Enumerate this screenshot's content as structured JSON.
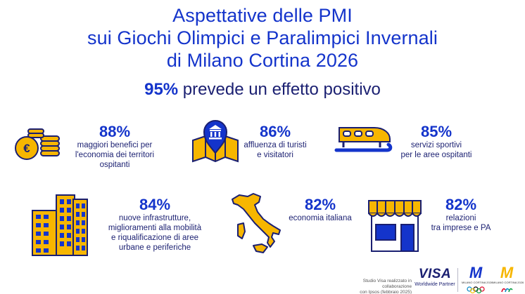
{
  "title": {
    "line1": "Aspettative delle PMI",
    "line2": "sui Giochi Olimpici e Paralimpici Invernali",
    "line3": "di Milano Cortina 2026"
  },
  "headline": {
    "percent": "95%",
    "text": " prevede un effetto positivo"
  },
  "stats": [
    {
      "percent": "88%",
      "description": "maggiori benefici per\nl'economia dei territori\nospitanti",
      "icon": "coins-icon"
    },
    {
      "percent": "86%",
      "description": "affluenza di turisti\ne visitatori",
      "icon": "map-pin-landmark-icon"
    },
    {
      "percent": "85%",
      "description": "servizi sportivi\nper le aree ospitanti",
      "icon": "bobsled-icon"
    },
    {
      "percent": "84%",
      "description": "nuove infrastrutture,\nmiglioramenti alla mobilità\ne riqualificazione di aree\nurbane e periferiche",
      "icon": "buildings-icon"
    },
    {
      "percent": "82%",
      "description": "economia italiana",
      "icon": "italy-map-icon"
    },
    {
      "percent": "82%",
      "description": "relazioni\ntra imprese e PA",
      "icon": "storefront-icon"
    }
  ],
  "footer": {
    "note": "Studio Visa realizzato in collaborazione\ncon Ipsos (febbraio 2025)",
    "visa_logo": "VISA",
    "visa_sub": "Worldwide Partner",
    "olympic_mark": "M",
    "olympic_text": "MILANO CORTINA 2026",
    "paralympic_mark": "M",
    "paralympic_text": "MILANO CORTINA 2026"
  },
  "colors": {
    "blue": "#1434cb",
    "navy": "#1a1f71",
    "gold": "#f7b600"
  }
}
